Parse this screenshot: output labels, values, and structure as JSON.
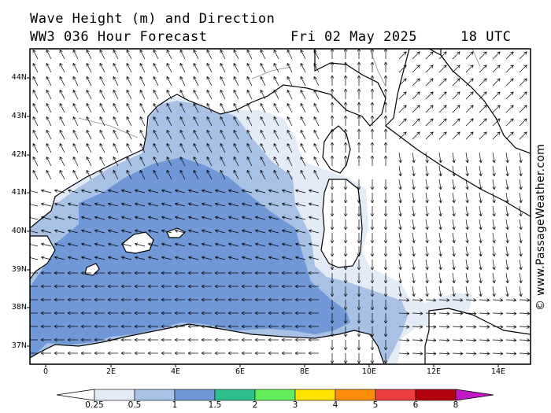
{
  "header": {
    "title": "Wave Height (m) and Direction",
    "model": "WW3 036 Hour Forecast",
    "date": "Fri 02 May 2025",
    "time": "18 UTC"
  },
  "credit": "© www.PassageWeather.com",
  "axes": {
    "lat_labels": [
      "44N",
      "43N",
      "42N",
      "41N",
      "40N",
      "39N",
      "38N",
      "37N"
    ],
    "lon_labels": [
      "0",
      "2E",
      "4E",
      "6E",
      "8E",
      "10E",
      "12E",
      "14E"
    ]
  },
  "legend": {
    "labels": [
      "0.25",
      "0.5",
      "1",
      "1.5",
      "2",
      "3",
      "4",
      "5",
      "6",
      "8"
    ],
    "colors": [
      "#e3ebf7",
      "#a8c1e5",
      "#7097d6",
      "#2dbf8e",
      "#64ec5c",
      "#fde200",
      "#fb8d0a",
      "#ec3d40",
      "#b4020e",
      "#c417c6"
    ]
  },
  "map_colors": {
    "sea_low": "#e3ebf7",
    "sea_mid": "#a8c1e5",
    "sea_high": "#7097d6",
    "land": "#ffffff",
    "coast": "#000000",
    "border": "#8a8a8a"
  }
}
